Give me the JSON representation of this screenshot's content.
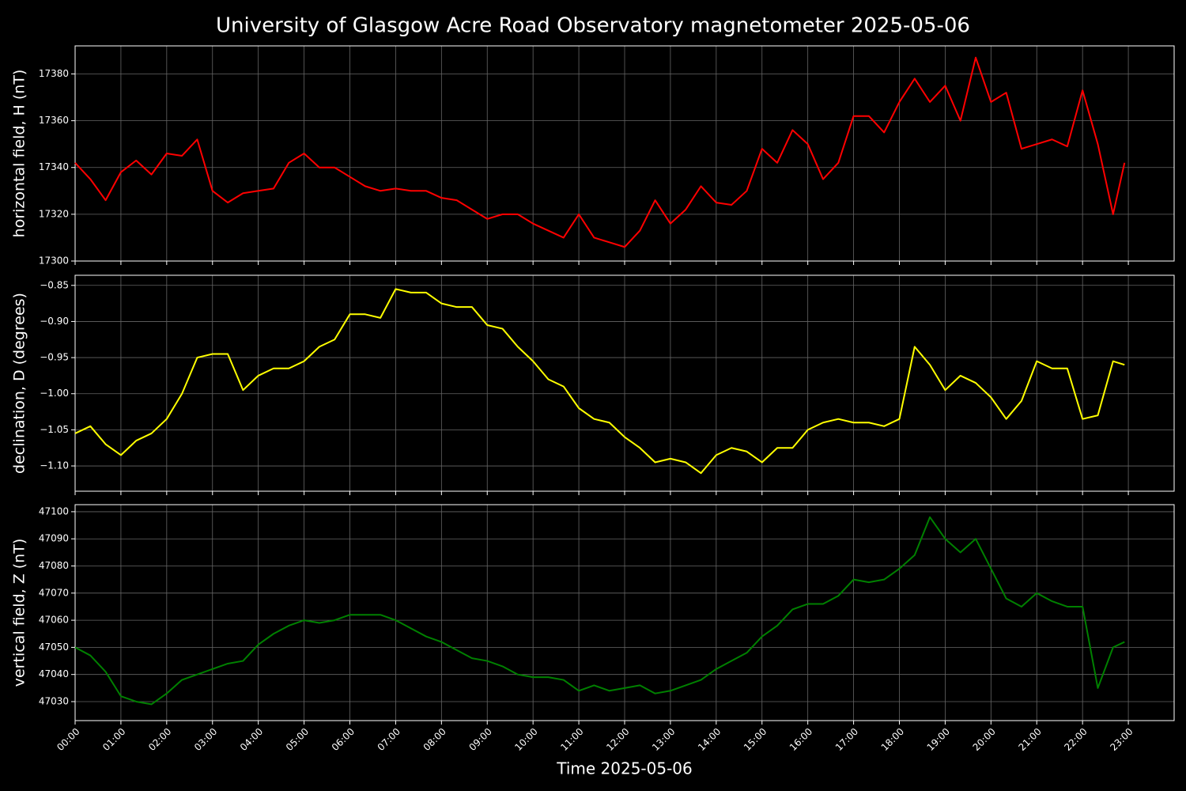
{
  "title": "University of Glasgow Acre Road Observatory magnetometer 2025-05-06",
  "chart_data": [
    {
      "type": "line",
      "ylabel": "horizontal field, H (nT)",
      "color": "#ff0000",
      "x": [
        "00:00",
        "00:20",
        "00:40",
        "01:00",
        "01:20",
        "01:40",
        "02:00",
        "02:20",
        "02:40",
        "03:00",
        "03:20",
        "03:40",
        "04:00",
        "04:20",
        "04:40",
        "05:00",
        "05:20",
        "05:40",
        "06:00",
        "06:20",
        "06:40",
        "07:00",
        "07:20",
        "07:40",
        "08:00",
        "08:20",
        "08:40",
        "09:00",
        "09:20",
        "09:40",
        "10:00",
        "10:20",
        "10:40",
        "11:00",
        "11:20",
        "11:40",
        "12:00",
        "12:20",
        "12:40",
        "13:00",
        "13:20",
        "13:40",
        "14:00",
        "14:20",
        "14:40",
        "15:00",
        "15:20",
        "15:40",
        "16:00",
        "16:20",
        "16:40",
        "17:00",
        "17:20",
        "17:40",
        "18:00",
        "18:20",
        "18:40",
        "19:00",
        "19:20",
        "19:40",
        "20:00",
        "20:20",
        "20:40",
        "21:00",
        "21:20",
        "21:40",
        "22:00",
        "22:20",
        "22:40",
        "22:55"
      ],
      "values": [
        17342,
        17335,
        17326,
        17338,
        17343,
        17337,
        17346,
        17345,
        17352,
        17330,
        17325,
        17329,
        17330,
        17331,
        17342,
        17346,
        17340,
        17340,
        17336,
        17332,
        17330,
        17331,
        17330,
        17330,
        17327,
        17326,
        17322,
        17318,
        17320,
        17320,
        17316,
        17313,
        17310,
        17320,
        17310,
        17308,
        17306,
        17313,
        17326,
        17316,
        17322,
        17332,
        17325,
        17324,
        17330,
        17348,
        17342,
        17356,
        17350,
        17335,
        17342,
        17362,
        17362,
        17355,
        17368,
        17378,
        17368,
        17375,
        17360,
        17387,
        17368,
        17372,
        17348,
        17350,
        17352,
        17349,
        17373,
        17350,
        17320,
        17342
      ],
      "ylim": [
        17300,
        17392
      ],
      "yticks": [
        17300,
        17320,
        17340,
        17360,
        17380
      ],
      "xlim": [
        "00:00",
        "24:00"
      ],
      "grid": true
    },
    {
      "type": "line",
      "ylabel": "declination, D (degrees)",
      "color": "#ffff00",
      "x": [
        "00:00",
        "00:20",
        "00:40",
        "01:00",
        "01:20",
        "01:40",
        "02:00",
        "02:20",
        "02:40",
        "03:00",
        "03:20",
        "03:40",
        "04:00",
        "04:20",
        "04:40",
        "05:00",
        "05:20",
        "05:40",
        "06:00",
        "06:20",
        "06:40",
        "07:00",
        "07:20",
        "07:40",
        "08:00",
        "08:20",
        "08:40",
        "09:00",
        "09:20",
        "09:40",
        "10:00",
        "10:20",
        "10:40",
        "11:00",
        "11:20",
        "11:40",
        "12:00",
        "12:20",
        "12:40",
        "13:00",
        "13:20",
        "13:40",
        "14:00",
        "14:20",
        "14:40",
        "15:00",
        "15:20",
        "15:40",
        "16:00",
        "16:20",
        "16:40",
        "17:00",
        "17:20",
        "17:40",
        "18:00",
        "18:20",
        "18:40",
        "19:00",
        "19:20",
        "19:40",
        "20:00",
        "20:20",
        "20:40",
        "21:00",
        "21:20",
        "21:40",
        "22:00",
        "22:20",
        "22:40",
        "22:55"
      ],
      "values": [
        -1.055,
        -1.045,
        -1.07,
        -1.085,
        -1.065,
        -1.055,
        -1.035,
        -1.0,
        -0.95,
        -0.945,
        -0.945,
        -0.995,
        -0.975,
        -0.965,
        -0.965,
        -0.955,
        -0.935,
        -0.925,
        -0.89,
        -0.89,
        -0.895,
        -0.855,
        -0.86,
        -0.86,
        -0.875,
        -0.88,
        -0.88,
        -0.905,
        -0.91,
        -0.935,
        -0.955,
        -0.98,
        -0.99,
        -1.02,
        -1.035,
        -1.04,
        -1.06,
        -1.075,
        -1.095,
        -1.09,
        -1.095,
        -1.11,
        -1.085,
        -1.075,
        -1.08,
        -1.095,
        -1.075,
        -1.075,
        -1.05,
        -1.04,
        -1.035,
        -1.04,
        -1.04,
        -1.045,
        -1.035,
        -0.935,
        -0.96,
        -0.995,
        -0.975,
        -0.985,
        -1.005,
        -1.035,
        -1.01,
        -0.955,
        -0.965,
        -0.965,
        -1.035,
        -1.03,
        -0.955,
        -0.96
      ],
      "ylim": [
        -1.135,
        -0.836
      ],
      "yticks": [
        {
          "value": -1.1,
          "label": "−1.10"
        },
        {
          "value": -1.05,
          "label": "−1.05"
        },
        {
          "value": -1.0,
          "label": "−1.00"
        },
        {
          "value": -0.95,
          "label": "−0.95"
        },
        {
          "value": -0.9,
          "label": "−0.90"
        },
        {
          "value": -0.85,
          "label": "−0.85"
        }
      ],
      "xlim": [
        "00:00",
        "24:00"
      ],
      "grid": true
    },
    {
      "type": "line",
      "ylabel": "vertical field, Z (nT)",
      "xlabel": "Time 2025-05-06",
      "color": "#008000",
      "x": [
        "00:00",
        "00:20",
        "00:40",
        "01:00",
        "01:20",
        "01:40",
        "02:00",
        "02:20",
        "02:40",
        "03:00",
        "03:20",
        "03:40",
        "04:00",
        "04:20",
        "04:40",
        "05:00",
        "05:20",
        "05:40",
        "06:00",
        "06:20",
        "06:40",
        "07:00",
        "07:20",
        "07:40",
        "08:00",
        "08:20",
        "08:40",
        "09:00",
        "09:20",
        "09:40",
        "10:00",
        "10:20",
        "10:40",
        "11:00",
        "11:20",
        "11:40",
        "12:00",
        "12:20",
        "12:40",
        "13:00",
        "13:20",
        "13:40",
        "14:00",
        "14:20",
        "14:40",
        "15:00",
        "15:20",
        "15:40",
        "16:00",
        "16:20",
        "16:40",
        "17:00",
        "17:20",
        "17:40",
        "18:00",
        "18:20",
        "18:40",
        "19:00",
        "19:20",
        "19:40",
        "20:00",
        "20:20",
        "20:40",
        "21:00",
        "21:20",
        "21:40",
        "22:00",
        "22:20",
        "22:40",
        "22:55"
      ],
      "values": [
        47050,
        47047,
        47041,
        47032,
        47030,
        47029,
        47033,
        47038,
        47040,
        47042,
        47044,
        47045,
        47051,
        47055,
        47058,
        47060,
        47059,
        47060,
        47062,
        47062,
        47062,
        47060,
        47057,
        47054,
        47052,
        47049,
        47046,
        47045,
        47043,
        47040,
        47039,
        47039,
        47038,
        47034,
        47036,
        47034,
        47035,
        47036,
        47033,
        47034,
        47036,
        47038,
        47042,
        47045,
        47048,
        47054,
        47058,
        47064,
        47066,
        47066,
        47069,
        47075,
        47074,
        47075,
        47079,
        47084,
        47098,
        47090,
        47085,
        47090,
        47079,
        47068,
        47065,
        47070,
        47067,
        47065,
        47065,
        47035,
        47050,
        47052
      ],
      "ylim": [
        47023,
        47102.6
      ],
      "yticks": [
        47030,
        47040,
        47050,
        47060,
        47070,
        47080,
        47090,
        47100
      ],
      "xlim": [
        "00:00",
        "24:00"
      ],
      "xticks": [
        "00:00",
        "01:00",
        "02:00",
        "03:00",
        "04:00",
        "05:00",
        "06:00",
        "07:00",
        "08:00",
        "09:00",
        "10:00",
        "11:00",
        "12:00",
        "13:00",
        "14:00",
        "15:00",
        "16:00",
        "17:00",
        "18:00",
        "19:00",
        "20:00",
        "21:00",
        "22:00",
        "23:00"
      ],
      "grid": true
    }
  ]
}
